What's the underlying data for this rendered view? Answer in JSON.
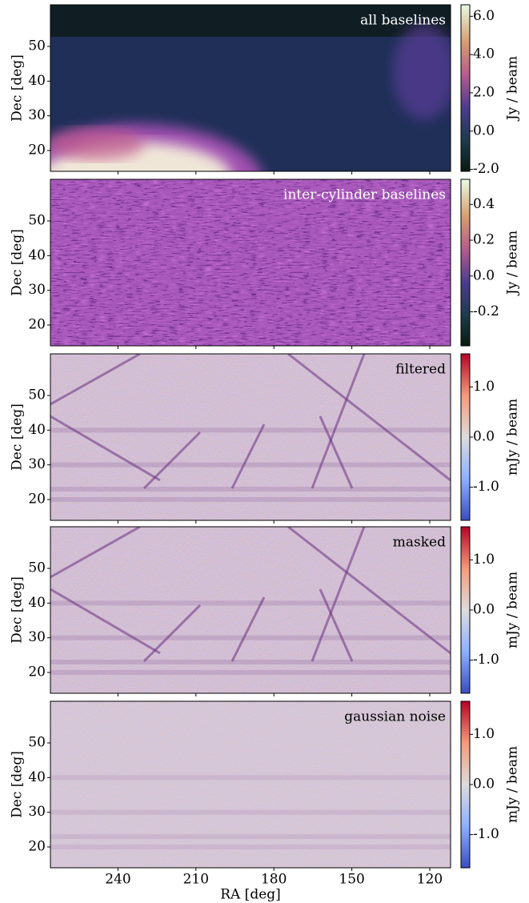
{
  "chart_data": [
    {
      "type": "heatmap",
      "annotation": "all baselines",
      "ylabel": "Dec [deg]",
      "xlim": [
        266,
        112
      ],
      "xticks": [
        240,
        210,
        180,
        150,
        120
      ],
      "ylim": [
        14,
        62
      ],
      "yticks": [
        20,
        30,
        40,
        50
      ],
      "colormap": "cubehelix",
      "clim": [
        -2.1,
        6.6
      ],
      "cticks": [
        {
          "value": -2,
          "label": "-2.0"
        },
        {
          "value": 0,
          "label": "0.0"
        },
        {
          "value": 2,
          "label": "2.0"
        },
        {
          "value": 4,
          "label": "4.0"
        },
        {
          "value": 6,
          "label": "6.0"
        }
      ],
      "colorbar_label": "Jy / beam"
    },
    {
      "type": "heatmap",
      "annotation": "inter-cylinder baselines",
      "ylabel": "Dec [deg]",
      "xlim": [
        266,
        112
      ],
      "xticks": [
        240,
        210,
        180,
        150,
        120
      ],
      "ylim": [
        14,
        62
      ],
      "yticks": [
        20,
        30,
        40,
        50
      ],
      "colormap": "cubehelix",
      "clim": [
        -0.39,
        0.54
      ],
      "cticks": [
        -0.2,
        {
          "value": 0,
          "label": "0.0"
        },
        0.2,
        0.4
      ],
      "colorbar_label": "Jy / beam"
    },
    {
      "type": "heatmap",
      "annotation": "filtered",
      "ylabel": "Dec [deg]",
      "xlim": [
        266,
        112
      ],
      "xticks": [
        240,
        210,
        180,
        150,
        120
      ],
      "ylim": [
        14,
        62
      ],
      "yticks": [
        20,
        30,
        40,
        50
      ],
      "colormap": "coolwarm",
      "clim": [
        -1.66,
        1.66
      ],
      "cticks": [
        {
          "value": -1,
          "label": "-1.0"
        },
        {
          "value": 0,
          "label": "0.0"
        },
        {
          "value": 1,
          "label": "1.0"
        }
      ],
      "colorbar_label": "mJy / beam"
    },
    {
      "type": "heatmap",
      "annotation": "masked",
      "ylabel": "Dec [deg]",
      "xlim": [
        266,
        112
      ],
      "xticks": [
        240,
        210,
        180,
        150,
        120
      ],
      "ylim": [
        14,
        62
      ],
      "yticks": [
        20,
        30,
        40,
        50
      ],
      "colormap": "coolwarm",
      "clim": [
        -1.66,
        1.66
      ],
      "cticks": [
        {
          "value": -1,
          "label": "-1.0"
        },
        {
          "value": 0,
          "label": "0.0"
        },
        {
          "value": 1,
          "label": "1.0"
        }
      ],
      "colorbar_label": "mJy / beam"
    },
    {
      "type": "heatmap",
      "annotation": "gaussian noise",
      "ylabel": "Dec [deg]",
      "xlabel": "RA [deg]",
      "xlim": [
        266,
        112
      ],
      "xticks": [
        240,
        210,
        180,
        150,
        120
      ],
      "ylim": [
        14,
        62
      ],
      "yticks": [
        20,
        30,
        40,
        50
      ],
      "colormap": "coolwarm",
      "clim": [
        -1.66,
        1.66
      ],
      "cticks": [
        {
          "value": -1,
          "label": "-1.0"
        },
        {
          "value": 0,
          "label": "0.0"
        },
        {
          "value": 1,
          "label": "1.0"
        }
      ],
      "colorbar_label": "mJy / beam"
    }
  ]
}
